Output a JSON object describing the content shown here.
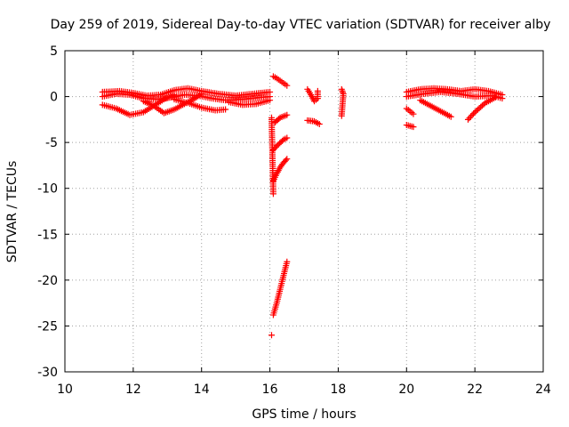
{
  "chart_data": {
    "type": "scatter",
    "title": "Day 259 of 2019, Sidereal Day-to-day VTEC variation (SDTVAR) for receiver alby",
    "xlabel": "GPS time / hours",
    "ylabel": "SDTVAR / TECUs",
    "xlim": [
      10,
      24
    ],
    "ylim": [
      -30,
      5
    ],
    "xticks": [
      10,
      12,
      14,
      16,
      18,
      20,
      22,
      24
    ],
    "yticks": [
      5,
      0,
      -5,
      -10,
      -15,
      -20,
      -25,
      -30
    ],
    "xtick_labels": [
      "10",
      "12",
      "14",
      "16",
      "18",
      "20",
      "22",
      "24"
    ],
    "ytick_labels": [
      "5",
      "0",
      "-5",
      "-10",
      "-15",
      "-20",
      "-25",
      "-30"
    ],
    "grid": true,
    "marker": "+",
    "color": "#ff0000",
    "series_segments": [
      {
        "name": "arc-a",
        "points": [
          [
            11.1,
            0.5
          ],
          [
            11.6,
            0.6
          ],
          [
            12.0,
            0.4
          ],
          [
            12.4,
            0.1
          ],
          [
            12.8,
            0.2
          ],
          [
            13.2,
            0.7
          ],
          [
            13.6,
            0.9
          ],
          [
            14.0,
            0.6
          ],
          [
            14.5,
            0.3
          ],
          [
            15.0,
            0.1
          ],
          [
            15.5,
            0.3
          ],
          [
            16.0,
            0.5
          ]
        ]
      },
      {
        "name": "arc-b",
        "points": [
          [
            11.1,
            0.0
          ],
          [
            11.5,
            0.3
          ],
          [
            11.9,
            0.2
          ],
          [
            12.3,
            -0.2
          ],
          [
            12.7,
            -0.3
          ],
          [
            13.1,
            -0.1
          ],
          [
            13.5,
            0.2
          ],
          [
            13.9,
            0.1
          ],
          [
            14.3,
            -0.2
          ],
          [
            14.7,
            -0.4
          ],
          [
            15.2,
            -0.3
          ],
          [
            15.7,
            -0.1
          ],
          [
            16.0,
            0.0
          ]
        ]
      },
      {
        "name": "arc-c",
        "points": [
          [
            11.1,
            -0.9
          ],
          [
            11.5,
            -1.3
          ],
          [
            11.9,
            -2.0
          ],
          [
            12.3,
            -1.7
          ],
          [
            12.6,
            -1.0
          ],
          [
            12.9,
            -0.3
          ],
          [
            13.2,
            0.2
          ]
        ]
      },
      {
        "name": "arc-d",
        "points": [
          [
            12.3,
            -0.5
          ],
          [
            12.6,
            -1.0
          ],
          [
            12.9,
            -1.8
          ],
          [
            13.2,
            -1.4
          ],
          [
            13.5,
            -0.8
          ],
          [
            13.8,
            -0.2
          ],
          [
            14.0,
            0.3
          ]
        ]
      },
      {
        "name": "arc-e",
        "points": [
          [
            13.2,
            -0.3
          ],
          [
            13.6,
            -0.7
          ],
          [
            14.0,
            -1.2
          ],
          [
            14.4,
            -1.5
          ],
          [
            14.7,
            -1.4
          ]
        ]
      },
      {
        "name": "arc-f",
        "points": [
          [
            14.8,
            -0.6
          ],
          [
            15.2,
            -0.9
          ],
          [
            15.6,
            -0.8
          ],
          [
            16.0,
            -0.4
          ]
        ]
      },
      {
        "name": "arc-g",
        "points": [
          [
            16.1,
            2.2
          ],
          [
            16.2,
            2.0
          ],
          [
            16.35,
            1.6
          ],
          [
            16.5,
            1.2
          ]
        ]
      },
      {
        "name": "arc-h",
        "points": [
          [
            16.15,
            -2.8
          ],
          [
            16.3,
            -2.3
          ],
          [
            16.5,
            -2.0
          ]
        ]
      },
      {
        "name": "arc-i",
        "points": [
          [
            16.1,
            -5.8
          ],
          [
            16.25,
            -5.2
          ],
          [
            16.4,
            -4.7
          ],
          [
            16.5,
            -4.5
          ]
        ]
      },
      {
        "name": "arc-j",
        "points": [
          [
            16.1,
            -9.2
          ],
          [
            16.2,
            -8.4
          ],
          [
            16.3,
            -7.7
          ],
          [
            16.4,
            -7.2
          ],
          [
            16.5,
            -6.8
          ]
        ]
      },
      {
        "name": "arc-k",
        "points": [
          [
            16.05,
            -2.3
          ],
          [
            16.1,
            -10.6
          ]
        ]
      },
      {
        "name": "arc-l",
        "points": [
          [
            16.1,
            -23.8
          ],
          [
            16.2,
            -22.5
          ],
          [
            16.3,
            -21.0
          ],
          [
            16.4,
            -19.5
          ],
          [
            16.5,
            -18.0
          ]
        ]
      },
      {
        "name": "arc-m",
        "points": [
          [
            16.05,
            -26.0
          ]
        ]
      },
      {
        "name": "arc-n",
        "points": [
          [
            17.1,
            0.8
          ],
          [
            17.2,
            0.2
          ],
          [
            17.3,
            -0.5
          ],
          [
            17.4,
            -0.2
          ],
          [
            17.4,
            0.6
          ]
        ]
      },
      {
        "name": "arc-o",
        "points": [
          [
            17.1,
            -2.6
          ],
          [
            17.3,
            -2.7
          ],
          [
            17.45,
            -3.0
          ]
        ]
      },
      {
        "name": "arc-p",
        "points": [
          [
            18.1,
            0.8
          ],
          [
            18.15,
            0.3
          ],
          [
            18.1,
            -2.1
          ]
        ]
      },
      {
        "name": "arc-q",
        "points": [
          [
            20.0,
            0.5
          ],
          [
            20.4,
            0.8
          ],
          [
            20.8,
            0.9
          ],
          [
            21.2,
            0.8
          ],
          [
            21.6,
            0.6
          ],
          [
            22.0,
            0.8
          ],
          [
            22.4,
            0.6
          ],
          [
            22.8,
            0.2
          ]
        ]
      },
      {
        "name": "arc-r",
        "points": [
          [
            20.0,
            0.0
          ],
          [
            20.5,
            0.3
          ],
          [
            21.0,
            0.5
          ],
          [
            21.5,
            0.3
          ],
          [
            22.0,
            0.0
          ],
          [
            22.5,
            0.1
          ],
          [
            22.8,
            -0.2
          ]
        ]
      },
      {
        "name": "arc-s",
        "points": [
          [
            20.4,
            -0.4
          ],
          [
            20.7,
            -1.0
          ],
          [
            21.0,
            -1.6
          ],
          [
            21.3,
            -2.2
          ]
        ]
      },
      {
        "name": "arc-t",
        "points": [
          [
            21.8,
            -2.5
          ],
          [
            22.0,
            -1.7
          ],
          [
            22.3,
            -0.7
          ],
          [
            22.6,
            -0.1
          ]
        ]
      },
      {
        "name": "arc-u",
        "points": [
          [
            20.0,
            -1.3
          ],
          [
            20.2,
            -1.9
          ]
        ]
      },
      {
        "name": "arc-v",
        "points": [
          [
            20.0,
            -3.1
          ],
          [
            20.2,
            -3.3
          ]
        ]
      }
    ]
  }
}
